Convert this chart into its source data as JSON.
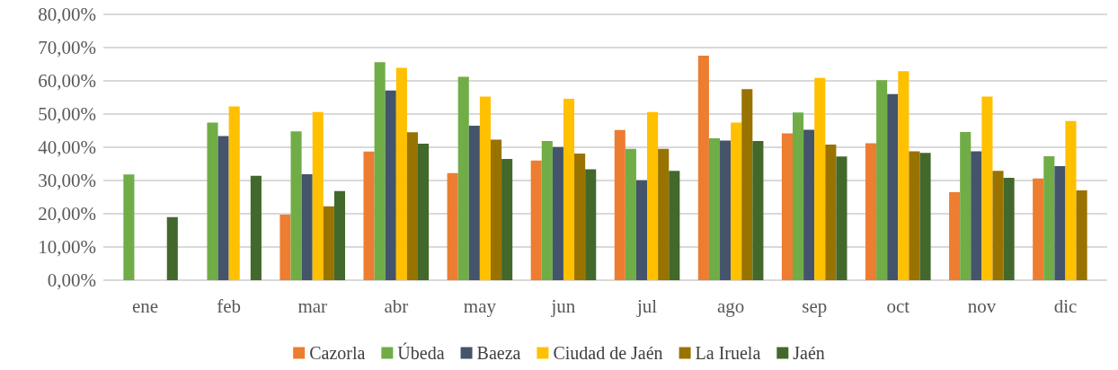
{
  "chart_data": {
    "type": "bar",
    "categories": [
      "ene",
      "feb",
      "mar",
      "abr",
      "may",
      "jun",
      "jul",
      "ago",
      "sep",
      "oct",
      "nov",
      "dic"
    ],
    "series": [
      {
        "name": "Cazorla",
        "color": "#ed7d31",
        "values": [
          null,
          null,
          19.7,
          38.7,
          32.2,
          36.0,
          45.2,
          67.6,
          44.2,
          41.2,
          26.5,
          30.6
        ]
      },
      {
        "name": "Úbeda",
        "color": "#70ad47",
        "values": [
          31.8,
          47.4,
          44.8,
          65.6,
          61.2,
          41.9,
          39.5,
          42.7,
          50.5,
          60.2,
          44.6,
          37.3
        ]
      },
      {
        "name": "Baeza",
        "color": "#44546a",
        "values": [
          null,
          43.4,
          31.9,
          57.1,
          46.5,
          40.1,
          30.1,
          42.0,
          45.3,
          56.0,
          38.8,
          34.3
        ]
      },
      {
        "name": "Ciudad de Jaén",
        "color": "#ffc000",
        "values": [
          null,
          52.3,
          50.6,
          63.9,
          55.3,
          54.6,
          50.6,
          47.4,
          60.9,
          62.9,
          55.3,
          47.9
        ]
      },
      {
        "name": "La Iruela",
        "color": "#997300",
        "values": [
          null,
          null,
          22.2,
          44.5,
          42.3,
          38.1,
          39.5,
          57.5,
          40.8,
          38.8,
          32.9,
          27.0
        ]
      },
      {
        "name": "Jaén",
        "color": "#43682b",
        "values": [
          19.0,
          31.4,
          26.8,
          41.1,
          36.5,
          33.4,
          32.9,
          41.9,
          37.2,
          38.3,
          30.8,
          null
        ]
      }
    ],
    "ylim": [
      0,
      80
    ],
    "yticks": [
      {
        "value": 0,
        "label": "0,00%"
      },
      {
        "value": 10,
        "label": "10,00%"
      },
      {
        "value": 20,
        "label": "20,00%"
      },
      {
        "value": 30,
        "label": "30,00%"
      },
      {
        "value": 40,
        "label": "40,00%"
      },
      {
        "value": 50,
        "label": "50,00%"
      },
      {
        "value": 60,
        "label": "60,00%"
      },
      {
        "value": 70,
        "label": "70,00%"
      },
      {
        "value": 80,
        "label": "80,00%"
      }
    ],
    "grid": "y",
    "legend": "bottom"
  }
}
